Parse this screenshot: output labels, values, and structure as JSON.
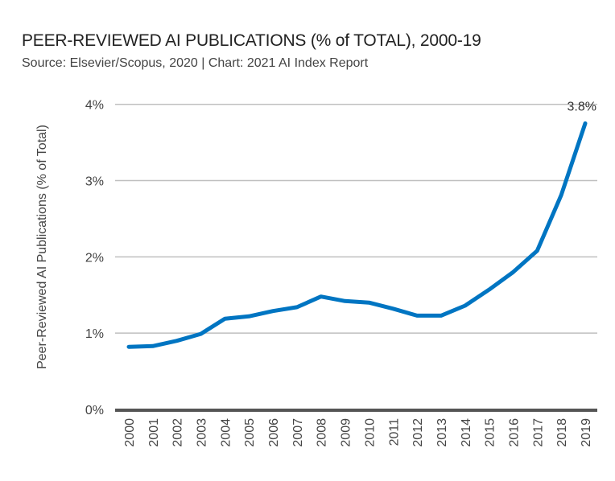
{
  "chart_data": {
    "type": "line",
    "title": "PEER-REVIEWED AI PUBLICATIONS (% of TOTAL), 2000-19",
    "subtitle": "Source: Elsevier/Scopus, 2020 | Chart: 2021 AI Index Report",
    "xlabel": "",
    "ylabel": "Peer-Reviewed AI Publications (% of Total)",
    "x": [
      "2000",
      "2001",
      "2002",
      "2003",
      "2004",
      "2005",
      "2006",
      "2007",
      "2008",
      "2009",
      "2010",
      "2011",
      "2012",
      "2013",
      "2014",
      "2015",
      "2016",
      "2017",
      "2018",
      "2019"
    ],
    "series": [
      {
        "name": "Peer-Reviewed AI Publications (% of Total)",
        "color": "#0075C2",
        "values": [
          0.82,
          0.83,
          0.9,
          0.99,
          1.19,
          1.22,
          1.29,
          1.34,
          1.48,
          1.42,
          1.4,
          1.32,
          1.23,
          1.23,
          1.36,
          1.57,
          1.8,
          2.08,
          2.81,
          3.75
        ]
      }
    ],
    "ylim": [
      0,
      4
    ],
    "yticks": [
      0,
      1,
      2,
      3,
      4
    ],
    "ytick_labels": [
      "0%",
      "1%",
      "2%",
      "3%",
      "4%"
    ],
    "grid": true,
    "annotations": [
      {
        "x": "2019",
        "label": "3.8%"
      }
    ],
    "gridline_color": "#BFBFBF",
    "baseline_color": "#555555"
  }
}
